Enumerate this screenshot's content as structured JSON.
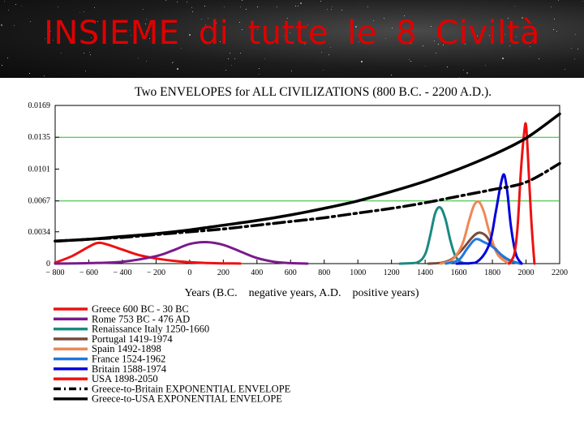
{
  "slide": {
    "title": "INSIEME di tutte le 8 Civiltà"
  },
  "chart_data": {
    "type": "line",
    "title": "Two ENVELOPES for ALL CIVILIZATIONS (800 B.C. - 2200 A.D.).",
    "xlabel": "Years (B.C.    negative years, A.D.    positive years)",
    "ylabel": "",
    "xlim": [
      -800,
      2200
    ],
    "ylim": [
      0,
      0.0169
    ],
    "xticks": [
      -800,
      -600,
      -400,
      -200,
      0,
      200,
      400,
      600,
      800,
      1000,
      1200,
      1400,
      1600,
      1800,
      2000,
      2200
    ],
    "xtick_labels": [
      "− 800",
      "− 600",
      "− 400",
      "− 200",
      "0",
      "200",
      "400",
      "600",
      "800",
      "1000",
      "1200",
      "1400",
      "1600",
      "1800",
      "2000",
      "2200"
    ],
    "yticks": [
      0,
      0.0034,
      0.0067,
      0.0101,
      0.0135,
      0.0169
    ],
    "ytick_labels": [
      "0",
      "0.0034",
      "0.0067",
      "0.0101",
      "0.0135",
      "0.0169"
    ],
    "grid_lines_y": [
      0.0067,
      0.0135
    ],
    "grid_color": "#22bb22",
    "legend_position": "below",
    "series": [
      {
        "name": "Greece 600 BC - 30 BC",
        "color": "#ee1111",
        "style": "solid",
        "x": [
          -800,
          -700,
          -600,
          -550,
          -500,
          -400,
          -300,
          -200,
          -100,
          0,
          100,
          200,
          300
        ],
        "y": [
          0.0001,
          0.0008,
          0.0018,
          0.0022,
          0.0021,
          0.0015,
          0.0009,
          0.00055,
          0.0003,
          0.00015,
          7e-05,
          3e-05,
          1e-05
        ]
      },
      {
        "name": "Rome 753 BC - 476 AD",
        "color": "#7a1a8c",
        "style": "solid",
        "x": [
          -800,
          -600,
          -400,
          -200,
          -100,
          0,
          100,
          200,
          300,
          400,
          500,
          600,
          700
        ],
        "y": [
          0.0,
          5e-05,
          0.0002,
          0.0008,
          0.0014,
          0.0021,
          0.0023,
          0.002,
          0.0013,
          0.0006,
          0.0002,
          5e-05,
          0.0
        ]
      },
      {
        "name": "Renaissance Italy 1250-1660",
        "color": "#1a8a80",
        "style": "solid",
        "x": [
          1250,
          1350,
          1400,
          1430,
          1460,
          1490,
          1520,
          1550,
          1580,
          1620,
          1660
        ],
        "y": [
          0.0,
          0.0001,
          0.001,
          0.003,
          0.0054,
          0.006,
          0.0048,
          0.0025,
          0.0008,
          0.0001,
          0.0
        ]
      },
      {
        "name": "Portugal 1419-1974",
        "color": "#7a4a3a",
        "style": "solid",
        "x": [
          1419,
          1500,
          1560,
          1620,
          1680,
          1720,
          1760,
          1800,
          1860,
          1920,
          1974
        ],
        "y": [
          0.0,
          0.0001,
          0.0005,
          0.0015,
          0.0028,
          0.0033,
          0.003,
          0.002,
          0.0008,
          0.0002,
          0.0
        ]
      },
      {
        "name": "Spain 1492-1898",
        "color": "#ee8855",
        "style": "solid",
        "x": [
          1492,
          1560,
          1620,
          1660,
          1690,
          1720,
          1750,
          1780,
          1830,
          1898
        ],
        "y": [
          0.0,
          0.0004,
          0.002,
          0.0045,
          0.0062,
          0.0066,
          0.0055,
          0.0035,
          0.001,
          0.0
        ]
      },
      {
        "name": "France 1524-1962",
        "color": "#2277dd",
        "style": "solid",
        "x": [
          1524,
          1600,
          1650,
          1700,
          1750,
          1800,
          1850,
          1900,
          1962
        ],
        "y": [
          0.0,
          0.0004,
          0.0016,
          0.0026,
          0.0023,
          0.0018,
          0.001,
          0.0004,
          0.0
        ]
      },
      {
        "name": "Britain 1588-1974",
        "color": "#0000dd",
        "style": "solid",
        "x": [
          1588,
          1700,
          1780,
          1820,
          1850,
          1870,
          1890,
          1910,
          1940,
          1974
        ],
        "y": [
          0.0,
          0.0001,
          0.002,
          0.0055,
          0.0085,
          0.0095,
          0.0075,
          0.004,
          0.001,
          0.0
        ]
      },
      {
        "name": "USA 1898-2050",
        "color": "#ee1111",
        "style": "solid",
        "x": [
          1898,
          1930,
          1950,
          1970,
          1990,
          2000,
          2010,
          2030,
          2050
        ],
        "y": [
          0.0,
          0.001,
          0.004,
          0.01,
          0.0142,
          0.0148,
          0.012,
          0.005,
          0.0
        ]
      },
      {
        "name": "Greece-to-Britain EXPONENTIAL ENVELOPE",
        "color": "#000000",
        "style": "dashdot",
        "x": [
          -800,
          -600,
          -400,
          -200,
          0,
          200,
          400,
          600,
          800,
          1000,
          1200,
          1400,
          1600,
          1800,
          2000,
          2200
        ],
        "y": [
          0.0024,
          0.0026,
          0.0028,
          0.0031,
          0.0034,
          0.0037,
          0.0041,
          0.0045,
          0.0049,
          0.0054,
          0.0059,
          0.0065,
          0.0072,
          0.0079,
          0.0087,
          0.0107
        ]
      },
      {
        "name": "Greece-to-USA EXPONENTIAL ENVELOPE",
        "color": "#000000",
        "style": "solid",
        "x": [
          -800,
          -600,
          -400,
          -200,
          0,
          200,
          400,
          600,
          800,
          1000,
          1200,
          1400,
          1600,
          1800,
          2000,
          2200
        ],
        "y": [
          0.0024,
          0.0026,
          0.0029,
          0.0032,
          0.0036,
          0.0041,
          0.0046,
          0.0052,
          0.0059,
          0.0067,
          0.0077,
          0.0088,
          0.0101,
          0.0116,
          0.0134,
          0.016
        ]
      }
    ]
  }
}
